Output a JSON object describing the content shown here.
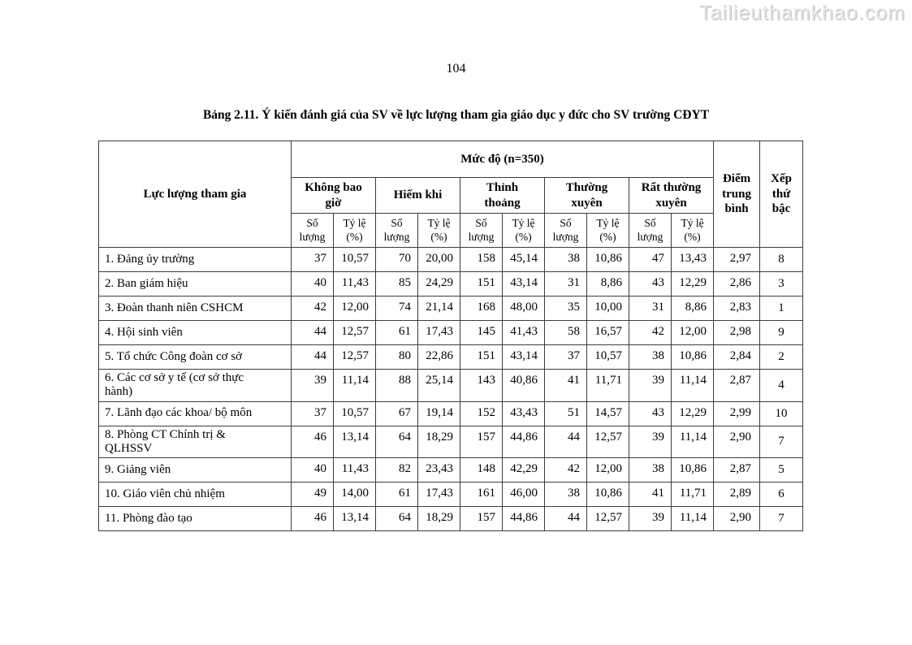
{
  "watermark": "Tailieuthamkhao.com",
  "page_number": "104",
  "title": "Bảng 2.11. Ý kiến đánh giá của SV về lực lượng tham gia giáo dục y đức cho SV trường CĐYT",
  "table": {
    "first_col_header": "Lực lượng tham gia",
    "group_header": "Mức độ (n=350)",
    "avg_header": "Điểm\ntrung\nbình",
    "rank_header": "Xếp\nthứ\nbậc",
    "count_label": "Số\nlượng",
    "pct_label": "Tỷ lệ\n(%)",
    "frequency_levels": [
      "Không bao\ngiờ",
      "Hiếm khi",
      "Thỉnh\nthoảng",
      "Thường\nxuyên",
      "Rất thường\nxuyên"
    ],
    "rows": [
      {
        "label": "1. Đảng ủy trường",
        "values": [
          "37",
          "10,57",
          "70",
          "20,00",
          "158",
          "45,14",
          "38",
          "10,86",
          "47",
          "13,43"
        ],
        "avg": "2,97",
        "rank": "8"
      },
      {
        "label": "2. Ban giám hiệu",
        "values": [
          "40",
          "11,43",
          "85",
          "24,29",
          "151",
          "43,14",
          "31",
          "8,86",
          "43",
          "12,29"
        ],
        "avg": "2,86",
        "rank": "3"
      },
      {
        "label": "3. Đoàn thanh niên CSHCM",
        "values": [
          "42",
          "12,00",
          "74",
          "21,14",
          "168",
          "48,00",
          "35",
          "10,00",
          "31",
          "8,86"
        ],
        "avg": "2,83",
        "rank": "1"
      },
      {
        "label": "4. Hội sinh viên",
        "values": [
          "44",
          "12,57",
          "61",
          "17,43",
          "145",
          "41,43",
          "58",
          "16,57",
          "42",
          "12,00"
        ],
        "avg": "2,98",
        "rank": "9"
      },
      {
        "label": "5. Tổ chức Công đoàn cơ sở",
        "values": [
          "44",
          "12,57",
          "80",
          "22,86",
          "151",
          "43,14",
          "37",
          "10,57",
          "38",
          "10,86"
        ],
        "avg": "2,84",
        "rank": "2"
      },
      {
        "label": "6. Các cơ sở y tế (cơ sở thực\nhành)",
        "values": [
          "39",
          "11,14",
          "88",
          "25,14",
          "143",
          "40,86",
          "41",
          "11,71",
          "39",
          "11,14"
        ],
        "avg": "2,87",
        "rank": "4"
      },
      {
        "label": "7. Lãnh đạo các khoa/ bộ môn",
        "values": [
          "37",
          "10,57",
          "67",
          "19,14",
          "152",
          "43,43",
          "51",
          "14,57",
          "43",
          "12,29"
        ],
        "avg": "2,99",
        "rank": "10"
      },
      {
        "label": "8. Phòng CT Chính trị &\nQLHSSV",
        "values": [
          "46",
          "13,14",
          "64",
          "18,29",
          "157",
          "44,86",
          "44",
          "12,57",
          "39",
          "11,14"
        ],
        "avg": "2,90",
        "rank": "7"
      },
      {
        "label": "9. Giảng viên",
        "values": [
          "40",
          "11,43",
          "82",
          "23,43",
          "148",
          "42,29",
          "42",
          "12,00",
          "38",
          "10,86"
        ],
        "avg": "2,87",
        "rank": "5"
      },
      {
        "label": "10. Giáo viên chủ nhiệm",
        "values": [
          "49",
          "14,00",
          "61",
          "17,43",
          "161",
          "46,00",
          "38",
          "10,86",
          "41",
          "11,71"
        ],
        "avg": "2,89",
        "rank": "6"
      },
      {
        "label": "11. Phòng đào tạo",
        "values": [
          "46",
          "13,14",
          "64",
          "18,29",
          "157",
          "44,86",
          "44",
          "12,57",
          "39",
          "11,14"
        ],
        "avg": "2,90",
        "rank": "7"
      }
    ]
  }
}
